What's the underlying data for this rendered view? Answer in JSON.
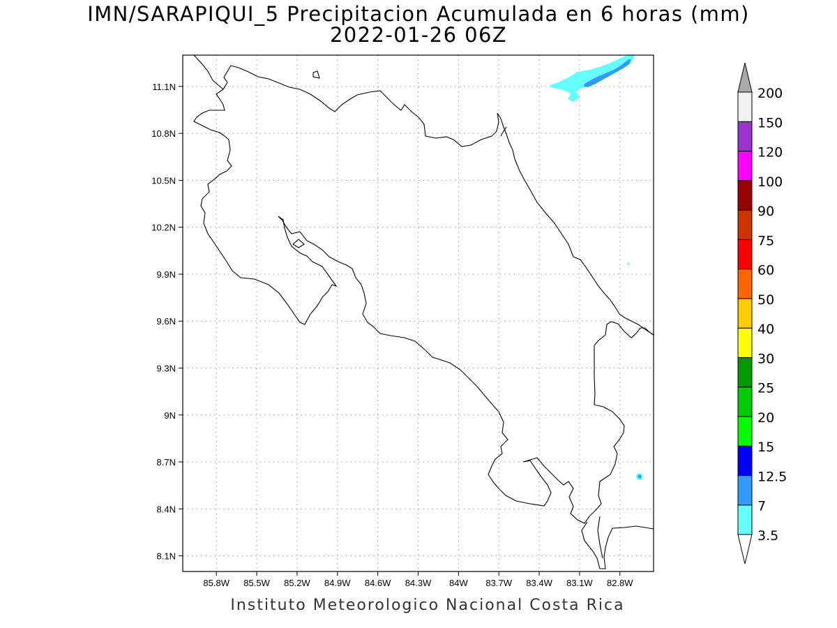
{
  "title": "IMN/SARAPIQUI_5 Precipitacion Acumulada en 6 horas (mm)",
  "subtitle": "2022-01-26 06Z",
  "footer": "Instituto Meteorologico Nacional Costa Rica",
  "map": {
    "lon_range": [
      -86.05,
      -82.55
    ],
    "lat_range": [
      8.0,
      11.3
    ],
    "lon_ticks": [
      {
        "value": -85.8,
        "label": "85.8W"
      },
      {
        "value": -85.5,
        "label": "85.5W"
      },
      {
        "value": -85.2,
        "label": "85.2W"
      },
      {
        "value": -84.9,
        "label": "84.9W"
      },
      {
        "value": -84.6,
        "label": "84.6W"
      },
      {
        "value": -84.3,
        "label": "84.3W"
      },
      {
        "value": -84.0,
        "label": "84W"
      },
      {
        "value": -83.7,
        "label": "83.7W"
      },
      {
        "value": -83.4,
        "label": "83.4W"
      },
      {
        "value": -83.1,
        "label": "83.1W"
      },
      {
        "value": -82.8,
        "label": "82.8W"
      }
    ],
    "lat_ticks": [
      {
        "value": 8.1,
        "label": "8.1N"
      },
      {
        "value": 8.4,
        "label": "8.4N"
      },
      {
        "value": 8.7,
        "label": "8.7N"
      },
      {
        "value": 9.0,
        "label": "9N"
      },
      {
        "value": 9.3,
        "label": "9.3N"
      },
      {
        "value": 9.6,
        "label": "9.6N"
      },
      {
        "value": 9.9,
        "label": "9.9N"
      },
      {
        "value": 10.2,
        "label": "10.2N"
      },
      {
        "value": 10.5,
        "label": "10.5N"
      },
      {
        "value": 10.8,
        "label": "10.8N"
      },
      {
        "value": 11.1,
        "label": "11.1N"
      }
    ],
    "grid": "dotted"
  },
  "colorbar": {
    "levels": [
      {
        "label": "3.5",
        "color": "#66ffff"
      },
      {
        "label": "7",
        "color": "#3399ff"
      },
      {
        "label": "12.5",
        "color": "#0000ff"
      },
      {
        "label": "15",
        "color": "#00ff00"
      },
      {
        "label": "20",
        "color": "#00cc00"
      },
      {
        "label": "25",
        "color": "#009900"
      },
      {
        "label": "30",
        "color": "#ffff00"
      },
      {
        "label": "40",
        "color": "#ffcc00"
      },
      {
        "label": "50",
        "color": "#ff6600"
      },
      {
        "label": "60",
        "color": "#ff0000"
      },
      {
        "label": "75",
        "color": "#cc3300"
      },
      {
        "label": "90",
        "color": "#990000"
      },
      {
        "label": "100",
        "color": "#ff00ff"
      },
      {
        "label": "120",
        "color": "#9933cc"
      },
      {
        "label": "150",
        "color": "#f2f2f2"
      },
      {
        "label": "200",
        "color": "#aaaaaa"
      }
    ],
    "top_arrow_color": "#aaaaaa",
    "bottom_arrow_color": "#ffffff"
  },
  "precip_areas": [
    {
      "color": "#66ffff",
      "level": "3.5"
    },
    {
      "color": "#3399ff",
      "level": "7"
    }
  ]
}
